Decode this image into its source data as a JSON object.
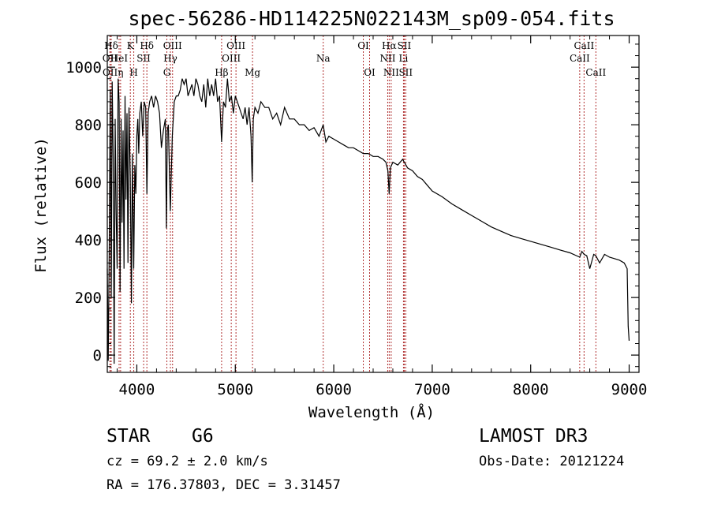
{
  "chart_data": {
    "type": "line",
    "title": "spec-56286-HD114225N022143M_sp09-054.fits",
    "xlabel": "Wavelength (Å)",
    "ylabel": "Flux (relative)",
    "xlim": [
      3700,
      9100
    ],
    "ylim": [
      -60,
      1110
    ],
    "xticks": [
      4000,
      5000,
      6000,
      7000,
      8000,
      9000
    ],
    "yticks": [
      0,
      200,
      400,
      600,
      800,
      1000
    ],
    "series": [
      {
        "name": "flux",
        "x": [
          3700,
          3710,
          3720,
          3730,
          3740,
          3750,
          3760,
          3770,
          3780,
          3790,
          3800,
          3810,
          3820,
          3830,
          3840,
          3850,
          3860,
          3870,
          3880,
          3890,
          3900,
          3910,
          3920,
          3933,
          3945,
          3955,
          3968,
          3980,
          3990,
          4000,
          4010,
          4020,
          4030,
          4045,
          4060,
          4075,
          4090,
          4102,
          4115,
          4130,
          4150,
          4170,
          4190,
          4210,
          4230,
          4250,
          4270,
          4290,
          4300,
          4310,
          4320,
          4340,
          4360,
          4380,
          4400,
          4420,
          4440,
          4460,
          4480,
          4500,
          4520,
          4540,
          4560,
          4580,
          4600,
          4620,
          4640,
          4660,
          4680,
          4700,
          4720,
          4740,
          4760,
          4780,
          4800,
          4820,
          4840,
          4861,
          4880,
          4900,
          4920,
          4940,
          4960,
          4980,
          5000,
          5020,
          5040,
          5060,
          5080,
          5100,
          5120,
          5140,
          5160,
          5172,
          5183,
          5200,
          5230,
          5260,
          5300,
          5340,
          5380,
          5420,
          5460,
          5500,
          5550,
          5600,
          5650,
          5700,
          5750,
          5800,
          5850,
          5893,
          5920,
          5950,
          6000,
          6050,
          6100,
          6150,
          6200,
          6250,
          6300,
          6350,
          6400,
          6450,
          6500,
          6530,
          6550,
          6563,
          6575,
          6600,
          6650,
          6700,
          6750,
          6800,
          6850,
          6900,
          6950,
          7000,
          7100,
          7200,
          7300,
          7400,
          7500,
          7600,
          7700,
          7800,
          7900,
          8000,
          8100,
          8200,
          8300,
          8400,
          8498,
          8520,
          8542,
          8570,
          8600,
          8640,
          8662,
          8700,
          8750,
          8800,
          8850,
          8900,
          8950,
          8980,
          8990,
          9000
        ],
        "y": [
          300,
          -20,
          380,
          920,
          200,
          950,
          680,
          -30,
          820,
          500,
          300,
          960,
          880,
          220,
          820,
          460,
          780,
          300,
          900,
          540,
          840,
          320,
          860,
          620,
          180,
          700,
          300,
          660,
          560,
          760,
          820,
          700,
          840,
          880,
          760,
          880,
          860,
          560,
          840,
          880,
          900,
          860,
          900,
          880,
          840,
          720,
          780,
          820,
          440,
          780,
          800,
          500,
          760,
          880,
          900,
          900,
          920,
          960,
          940,
          960,
          900,
          920,
          940,
          900,
          960,
          940,
          900,
          880,
          940,
          860,
          960,
          900,
          940,
          900,
          960,
          880,
          900,
          740,
          880,
          860,
          960,
          880,
          900,
          840,
          900,
          880,
          860,
          840,
          820,
          860,
          800,
          860,
          760,
          600,
          820,
          860,
          840,
          880,
          860,
          860,
          820,
          840,
          800,
          860,
          820,
          820,
          800,
          800,
          780,
          790,
          760,
          800,
          740,
          760,
          750,
          740,
          730,
          720,
          720,
          710,
          700,
          700,
          690,
          690,
          680,
          670,
          640,
          560,
          650,
          670,
          660,
          680,
          650,
          640,
          620,
          610,
          590,
          570,
          550,
          525,
          505,
          485,
          465,
          445,
          430,
          415,
          405,
          395,
          385,
          375,
          365,
          355,
          340,
          360,
          350,
          345,
          300,
          350,
          345,
          320,
          350,
          340,
          335,
          330,
          320,
          300,
          100,
          50
        ]
      }
    ],
    "spectral_lines": [
      {
        "label": "Hδ",
        "x": 3740,
        "row": 1
      },
      {
        "label": "OII",
        "x": 3727,
        "row": 2
      },
      {
        "label": "OII",
        "x": 3729,
        "row": 3
      },
      {
        "label": "HeI",
        "x": 3820,
        "row": 2
      },
      {
        "label": "η",
        "x": 3835,
        "row": 3
      },
      {
        "label": "K",
        "x": 3934,
        "row": 1
      },
      {
        "label": "SII",
        "x": 4069,
        "row": 2
      },
      {
        "label": "H",
        "x": 3969,
        "row": 3
      },
      {
        "label": "Hδ",
        "x": 4102,
        "row": 1
      },
      {
        "label": "OIII",
        "x": 4363,
        "row": 1
      },
      {
        "label": "Hγ",
        "x": 4341,
        "row": 2
      },
      {
        "label": "G",
        "x": 4305,
        "row": 3
      },
      {
        "label": "Hβ",
        "x": 4861,
        "row": 3
      },
      {
        "label": "OIII",
        "x": 5007,
        "row": 1
      },
      {
        "label": "OIII",
        "x": 4959,
        "row": 2
      },
      {
        "label": "Mg",
        "x": 5175,
        "row": 3
      },
      {
        "label": "Na",
        "x": 5893,
        "row": 2
      },
      {
        "label": "OI",
        "x": 6300,
        "row": 1
      },
      {
        "label": "OI",
        "x": 6364,
        "row": 3
      },
      {
        "label": "Hα",
        "x": 6563,
        "row": 1
      },
      {
        "label": "SII",
        "x": 6716,
        "row": 1
      },
      {
        "label": "NII",
        "x": 6548,
        "row": 2
      },
      {
        "label": "Li",
        "x": 6708,
        "row": 2
      },
      {
        "label": "NII",
        "x": 6583,
        "row": 3
      },
      {
        "label": "SII",
        "x": 6731,
        "row": 3
      },
      {
        "label": "CaII",
        "x": 8542,
        "row": 1
      },
      {
        "label": "CaII",
        "x": 8498,
        "row": 2
      },
      {
        "label": "CaII",
        "x": 8662,
        "row": 3
      }
    ]
  },
  "info": {
    "class_label": "STAR",
    "subclass": "G6",
    "survey": "LAMOST DR3",
    "redshift": "cz = 69.2 ± 2.0 km/s",
    "obs_date": "Obs-Date: 20121224",
    "coords": "RA = 176.37803, DEC =    3.31457"
  },
  "colors": {
    "line_marker": "#b03030",
    "spectrum": "#000000",
    "axis": "#000000"
  }
}
